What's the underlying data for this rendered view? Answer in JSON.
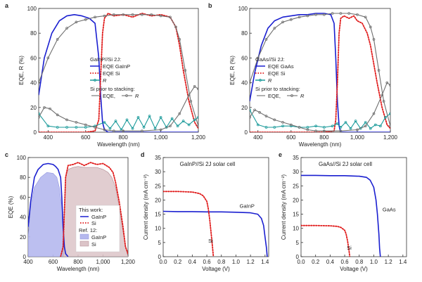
{
  "colors": {
    "gainp": "#1a1fd0",
    "si": "#e01b1b",
    "r": "#1a9a9a",
    "prior": "#6f6f6f",
    "ref_gainp_fill": "#b5b8ee",
    "ref_si_fill": "#dcc4c8"
  },
  "chart_data": [
    {
      "panel": "a",
      "type": "line",
      "xlabel": "Wavelength (nm)",
      "ylabel": "EQE, R (%)",
      "xlim": [
        350,
        1200
      ],
      "ylim": [
        0,
        100
      ],
      "xticks": [
        400,
        600,
        800,
        "1,000",
        "1,200"
      ],
      "yticks": [
        0,
        20,
        40,
        60,
        80,
        100
      ],
      "legend_title": "GaInP//Si 2J:",
      "legend": [
        "EQE GaInP",
        "EQE Si",
        "R"
      ],
      "legend_sub": "Si prior to stacking:",
      "legend_sub_items": [
        "EQE,",
        "R"
      ],
      "series": [
        {
          "name": "EQE GaInP",
          "color_key": "gainp",
          "style": "solid",
          "x": [
            350,
            380,
            420,
            460,
            500,
            540,
            580,
            620,
            650,
            670,
            680,
            690,
            700,
            720,
            760,
            800,
            900,
            1000,
            1100,
            1200
          ],
          "y": [
            30,
            60,
            80,
            90,
            94,
            95,
            94,
            92,
            88,
            60,
            30,
            8,
            2,
            0,
            0,
            0,
            0,
            0,
            0,
            0
          ]
        },
        {
          "name": "EQE Si",
          "color_key": "si",
          "style": "dotted",
          "x": [
            350,
            500,
            600,
            650,
            670,
            680,
            690,
            700,
            720,
            750,
            800,
            850,
            900,
            950,
            1000,
            1050,
            1080,
            1100,
            1120,
            1150,
            1180,
            1200
          ],
          "y": [
            0,
            0,
            0,
            1,
            10,
            45,
            80,
            92,
            96,
            94,
            95,
            93,
            96,
            94,
            95,
            93,
            85,
            70,
            50,
            25,
            8,
            3
          ]
        },
        {
          "name": "R",
          "color_key": "r",
          "style": "marked",
          "x": [
            350,
            400,
            450,
            500,
            550,
            600,
            650,
            700,
            730,
            760,
            790,
            820,
            850,
            880,
            910,
            940,
            970,
            1000,
            1030,
            1060,
            1090,
            1120,
            1150,
            1180,
            1200
          ],
          "y": [
            15,
            5,
            4,
            4,
            4,
            4,
            5,
            8,
            3,
            9,
            2,
            10,
            3,
            12,
            4,
            13,
            3,
            12,
            4,
            11,
            5,
            9,
            6,
            10,
            12
          ]
        },
        {
          "name": "EQE, (prior)",
          "color_key": "prior",
          "style": "marked",
          "x": [
            350,
            400,
            450,
            500,
            550,
            600,
            650,
            700,
            750,
            800,
            850,
            900,
            950,
            1000,
            1050,
            1080,
            1100,
            1130,
            1160,
            1200
          ],
          "y": [
            40,
            60,
            75,
            84,
            89,
            91,
            93,
            94,
            95,
            95,
            95,
            95,
            95,
            94,
            93,
            85,
            75,
            50,
            25,
            5
          ]
        },
        {
          "name": "R (prior)",
          "color_key": "prior",
          "style": "marked",
          "x": [
            350,
            380,
            410,
            450,
            500,
            550,
            600,
            650,
            700,
            750,
            800,
            900,
            1000,
            1050,
            1100,
            1150,
            1180,
            1200
          ],
          "y": [
            12,
            20,
            19,
            14,
            10,
            8,
            6,
            4,
            2,
            1,
            1,
            1,
            2,
            5,
            15,
            30,
            37,
            35
          ]
        }
      ]
    },
    {
      "panel": "b",
      "type": "line",
      "xlabel": "Wavelength (nm)",
      "ylabel": "EQE, R (%)",
      "xlim": [
        350,
        1200
      ],
      "ylim": [
        0,
        100
      ],
      "xticks": [
        400,
        600,
        800,
        "1,000",
        "1,200"
      ],
      "yticks": [
        0,
        20,
        40,
        60,
        80,
        100
      ],
      "legend_title": "GaAs//Si 2J:",
      "legend": [
        "EQE GaAs",
        "EQE Si",
        "R"
      ],
      "legend_sub": "Si prior to stacking:",
      "legend_sub_items": [
        "EQE,",
        "R"
      ],
      "series": [
        {
          "name": "EQE GaAs",
          "color_key": "gainp",
          "style": "solid",
          "x": [
            350,
            380,
            420,
            460,
            500,
            550,
            600,
            650,
            700,
            750,
            800,
            840,
            860,
            870,
            880,
            890,
            900,
            1000,
            1100,
            1200
          ],
          "y": [
            25,
            48,
            70,
            84,
            90,
            93,
            94,
            95,
            95,
            96,
            96,
            95,
            88,
            60,
            25,
            5,
            0,
            0,
            0,
            0
          ]
        },
        {
          "name": "EQE Si",
          "color_key": "si",
          "style": "dotted",
          "x": [
            350,
            800,
            860,
            870,
            880,
            890,
            900,
            920,
            950,
            980,
            1000,
            1030,
            1060,
            1080,
            1100,
            1120,
            1150,
            1180,
            1200
          ],
          "y": [
            0,
            0,
            1,
            10,
            40,
            80,
            92,
            94,
            92,
            94,
            90,
            88,
            80,
            70,
            55,
            40,
            20,
            6,
            3
          ]
        },
        {
          "name": "R",
          "color_key": "r",
          "style": "marked",
          "x": [
            350,
            400,
            450,
            500,
            550,
            600,
            650,
            700,
            750,
            800,
            850,
            880,
            900,
            930,
            960,
            990,
            1020,
            1050,
            1080,
            1110,
            1140,
            1170,
            1200
          ],
          "y": [
            18,
            6,
            4,
            4,
            5,
            5,
            4,
            4,
            5,
            4,
            5,
            7,
            4,
            8,
            3,
            9,
            3,
            8,
            3,
            6,
            5,
            12,
            15
          ]
        },
        {
          "name": "EQE, (prior)",
          "color_key": "prior",
          "style": "marked",
          "x": [
            350,
            400,
            450,
            500,
            550,
            600,
            650,
            700,
            750,
            800,
            850,
            900,
            950,
            1000,
            1050,
            1080,
            1100,
            1130,
            1160,
            1200
          ],
          "y": [
            40,
            60,
            75,
            84,
            89,
            91,
            93,
            94,
            95,
            95,
            96,
            96,
            96,
            95,
            93,
            85,
            75,
            50,
            25,
            5
          ]
        },
        {
          "name": "R (prior)",
          "color_key": "prior",
          "style": "marked",
          "x": [
            350,
            380,
            410,
            450,
            500,
            550,
            600,
            650,
            700,
            750,
            800,
            900,
            1000,
            1050,
            1100,
            1150,
            1180,
            1200
          ],
          "y": [
            12,
            18,
            16,
            13,
            10,
            8,
            6,
            4,
            2,
            1,
            1,
            1,
            2,
            5,
            15,
            30,
            40,
            38
          ]
        }
      ]
    },
    {
      "panel": "c",
      "type": "area",
      "xlabel": "Wavelength (nm)",
      "ylabel": "EQE (%)",
      "xlim": [
        400,
        1200
      ],
      "ylim": [
        0,
        100
      ],
      "xticks": [
        400,
        600,
        800,
        "1,000",
        "1,200"
      ],
      "yticks": [
        0,
        20,
        40,
        60,
        80,
        100
      ],
      "legend_title": "This work:",
      "legend": [
        "GaInP",
        "Si"
      ],
      "legend_sub": "Ref. 12:",
      "legend_sub_items": [
        "GaInP",
        "Si"
      ],
      "series": [
        {
          "name": "GaInP",
          "color_key": "gainp",
          "style": "solid",
          "x": [
            400,
            420,
            450,
            480,
            520,
            560,
            600,
            620,
            640,
            660,
            670,
            680,
            690,
            700,
            720
          ],
          "y": [
            30,
            55,
            80,
            88,
            93,
            94,
            93,
            91,
            88,
            80,
            60,
            30,
            10,
            3,
            0
          ]
        },
        {
          "name": "Si",
          "color_key": "si",
          "style": "dotted",
          "x": [
            660,
            680,
            690,
            700,
            720,
            760,
            800,
            850,
            900,
            950,
            1000,
            1050,
            1080,
            1100,
            1130,
            1160,
            1180,
            1200
          ],
          "y": [
            0,
            10,
            45,
            80,
            92,
            93,
            95,
            92,
            95,
            93,
            94,
            90,
            85,
            75,
            55,
            30,
            10,
            3
          ]
        },
        {
          "name": "Ref. 12 GaInP",
          "color_key": "ref_gainp_fill",
          "style": "fill",
          "x": [
            400,
            420,
            450,
            500,
            550,
            600,
            630,
            650,
            670,
            690,
            700,
            720
          ],
          "y": [
            20,
            50,
            70,
            80,
            85,
            84,
            80,
            70,
            50,
            20,
            5,
            0
          ]
        },
        {
          "name": "Ref. 12 Si",
          "color_key": "ref_si_fill",
          "style": "fill",
          "x": [
            680,
            690,
            700,
            720,
            760,
            800,
            850,
            900,
            950,
            1000,
            1040,
            1070,
            1100,
            1130,
            1160,
            1190,
            1200
          ],
          "y": [
            0,
            50,
            80,
            88,
            90,
            91,
            90,
            90,
            90,
            88,
            85,
            80,
            70,
            50,
            25,
            5,
            0
          ]
        }
      ]
    },
    {
      "panel": "d",
      "type": "line",
      "title": "GaInP//Si 2J solar cell",
      "xlabel": "Voltage (V)",
      "ylabel": "Current density (mA cm⁻²)",
      "xlim": [
        0,
        1.45
      ],
      "ylim": [
        0,
        35
      ],
      "xticks": [
        0.0,
        0.2,
        0.4,
        0.6,
        0.8,
        1.0,
        1.2,
        1.4
      ],
      "yticks": [
        0,
        5,
        10,
        15,
        20,
        25,
        30,
        35
      ],
      "labels": [
        "GaInP",
        "Si"
      ],
      "series": [
        {
          "name": "GaInP",
          "color_key": "gainp",
          "style": "solid",
          "x": [
            0,
            0.2,
            0.4,
            0.6,
            0.8,
            1.0,
            1.2,
            1.3,
            1.35,
            1.38,
            1.4,
            1.42,
            1.43
          ],
          "y": [
            16,
            15.9,
            15.9,
            15.8,
            15.8,
            15.7,
            15.5,
            15.0,
            13.5,
            11,
            7,
            3,
            0
          ]
        },
        {
          "name": "Si",
          "color_key": "si",
          "style": "dotted",
          "x": [
            0,
            0.2,
            0.4,
            0.5,
            0.55,
            0.6,
            0.62,
            0.64,
            0.66,
            0.68,
            0.69
          ],
          "y": [
            23,
            23,
            22.8,
            22.3,
            21.5,
            19.5,
            17,
            13,
            8,
            3,
            0
          ]
        }
      ]
    },
    {
      "panel": "e",
      "type": "line",
      "title": "GaAs//Si 2J solar cell",
      "xlabel": "Voltage (V)",
      "ylabel": "Current density (mA cm⁻²)",
      "xlim": [
        0,
        1.45
      ],
      "ylim": [
        0,
        35
      ],
      "xticks": [
        0.0,
        0.2,
        0.4,
        0.6,
        0.8,
        1.0,
        1.2,
        1.4
      ],
      "yticks": [
        0,
        5,
        10,
        15,
        20,
        25,
        30,
        35
      ],
      "labels": [
        "GaAs",
        "Si"
      ],
      "series": [
        {
          "name": "GaAs",
          "color_key": "gainp",
          "style": "solid",
          "x": [
            0,
            0.2,
            0.4,
            0.6,
            0.8,
            0.9,
            0.95,
            1.0,
            1.03,
            1.05,
            1.07,
            1.08,
            1.09
          ],
          "y": [
            28.7,
            28.7,
            28.6,
            28.6,
            28.4,
            28.0,
            27.0,
            24.5,
            20,
            15,
            8,
            3,
            0
          ]
        },
        {
          "name": "Si",
          "color_key": "si",
          "style": "dotted",
          "x": [
            0,
            0.2,
            0.4,
            0.5,
            0.55,
            0.6,
            0.62,
            0.64,
            0.66,
            0.67
          ],
          "y": [
            11,
            11,
            10.9,
            10.7,
            10.3,
            9.3,
            8,
            5.5,
            2,
            0
          ]
        }
      ]
    }
  ]
}
